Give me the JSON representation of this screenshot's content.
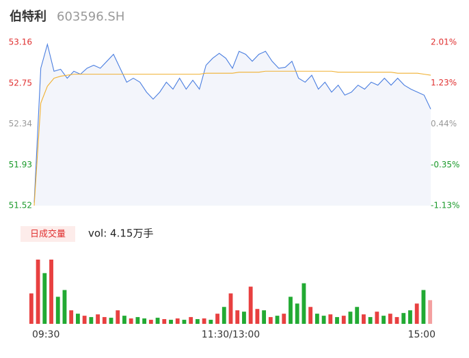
{
  "header": {
    "name": "伯特利",
    "code": "603596.SH"
  },
  "chart_data": [
    {
      "type": "line",
      "x": [
        0,
        4,
        8,
        12,
        16,
        20,
        24,
        28,
        32,
        36,
        40,
        44,
        48,
        52,
        56,
        60,
        64,
        68,
        72,
        76,
        80,
        84,
        88,
        92,
        96,
        100,
        104,
        108,
        112,
        116,
        120,
        124,
        128,
        132,
        136,
        140,
        144,
        148,
        152,
        156,
        160,
        164,
        168,
        172,
        176,
        180,
        184,
        188,
        192,
        196,
        200,
        204,
        208,
        212,
        216,
        220,
        224,
        228,
        232,
        236,
        240
      ],
      "xlim": [
        0,
        240
      ],
      "series": [
        {
          "name": "price",
          "color": "#4a7ee0",
          "values": [
            51.55,
            52.9,
            53.14,
            52.87,
            52.89,
            52.8,
            52.87,
            52.84,
            52.9,
            52.93,
            52.9,
            52.97,
            53.04,
            52.9,
            52.76,
            52.8,
            52.76,
            52.66,
            52.59,
            52.66,
            52.76,
            52.69,
            52.8,
            52.69,
            52.78,
            52.69,
            52.93,
            53.0,
            53.05,
            53.0,
            52.9,
            53.07,
            53.04,
            52.97,
            53.04,
            53.07,
            52.97,
            52.9,
            52.91,
            52.97,
            52.8,
            52.76,
            52.83,
            52.69,
            52.76,
            52.66,
            52.73,
            52.63,
            52.66,
            52.73,
            52.69,
            52.76,
            52.73,
            52.8,
            52.73,
            52.8,
            52.73,
            52.69,
            52.66,
            52.63,
            52.49
          ]
        },
        {
          "name": "average",
          "color": "#f0b030",
          "values": [
            51.52,
            52.55,
            52.72,
            52.8,
            52.82,
            52.83,
            52.84,
            52.84,
            52.84,
            52.84,
            52.84,
            52.84,
            52.84,
            52.84,
            52.84,
            52.84,
            52.84,
            52.84,
            52.84,
            52.84,
            52.84,
            52.84,
            52.84,
            52.84,
            52.84,
            52.84,
            52.85,
            52.85,
            52.85,
            52.85,
            52.85,
            52.86,
            52.86,
            52.86,
            52.86,
            52.87,
            52.87,
            52.87,
            52.87,
            52.87,
            52.87,
            52.87,
            52.87,
            52.87,
            52.87,
            52.87,
            52.86,
            52.86,
            52.86,
            52.86,
            52.86,
            52.86,
            52.86,
            52.86,
            52.86,
            52.85,
            52.85,
            52.85,
            52.85,
            52.84,
            52.83
          ]
        }
      ],
      "ylim": [
        51.52,
        53.16
      ],
      "yticks": [
        53.16,
        52.75,
        52.34,
        51.93,
        51.52
      ],
      "y2lim": [
        -1.13,
        2.01
      ],
      "y2ticks": [
        {
          "value": 2.01,
          "label": "2.01%"
        },
        {
          "value": 1.23,
          "label": "1.23%"
        },
        {
          "value": 0.44,
          "label": "0.44%"
        },
        {
          "value": -0.35,
          "label": "-0.35%"
        },
        {
          "value": -1.13,
          "label": "-1.13%"
        }
      ],
      "tick_colors": [
        "#e03030",
        "#e03030",
        "#999999",
        "#1a9a2a",
        "#1a9a2a"
      ],
      "xticks": [
        {
          "value": 0,
          "label": "09:30"
        },
        {
          "value": 120,
          "label": "11:30/13:00"
        },
        {
          "value": 240,
          "label": "15:00"
        }
      ]
    },
    {
      "type": "bar",
      "legend": "日成交量",
      "volume_label": "vol: 4.15万手",
      "ylim": [
        0,
        100
      ],
      "values": [
        45,
        95,
        75,
        95,
        40,
        50,
        20,
        15,
        12,
        10,
        14,
        10,
        9,
        20,
        12,
        8,
        10,
        8,
        6,
        9,
        7,
        6,
        8,
        6,
        10,
        7,
        8,
        6,
        15,
        25,
        45,
        20,
        18,
        55,
        22,
        20,
        10,
        12,
        15,
        40,
        30,
        60,
        25,
        15,
        12,
        14,
        10,
        12,
        18,
        25,
        14,
        10,
        18,
        12,
        15,
        10,
        16,
        20,
        30,
        50,
        35
      ],
      "colors": [
        "#e84040",
        "#e84040",
        "#22aa33",
        "#e84040",
        "#22aa33",
        "#22aa33",
        "#e84040",
        "#22aa33",
        "#e84040",
        "#22aa33",
        "#e84040",
        "#e84040",
        "#22aa33",
        "#e84040",
        "#22aa33",
        "#e84040",
        "#22aa33",
        "#22aa33",
        "#e84040",
        "#22aa33",
        "#e84040",
        "#22aa33",
        "#e84040",
        "#22aa33",
        "#e84040",
        "#22aa33",
        "#e84040",
        "#22aa33",
        "#e84040",
        "#22aa33",
        "#e84040",
        "#e84040",
        "#22aa33",
        "#e84040",
        "#e84040",
        "#22aa33",
        "#e84040",
        "#22aa33",
        "#e84040",
        "#22aa33",
        "#22aa33",
        "#22aa33",
        "#e84040",
        "#22aa33",
        "#22aa33",
        "#e84040",
        "#22aa33",
        "#e84040",
        "#22aa33",
        "#22aa33",
        "#e84040",
        "#22aa33",
        "#e84040",
        "#22aa33",
        "#e84040",
        "#e84040",
        "#22aa33",
        "#22aa33",
        "#e84040",
        "#22aa33",
        "#f4a0a0"
      ]
    }
  ]
}
